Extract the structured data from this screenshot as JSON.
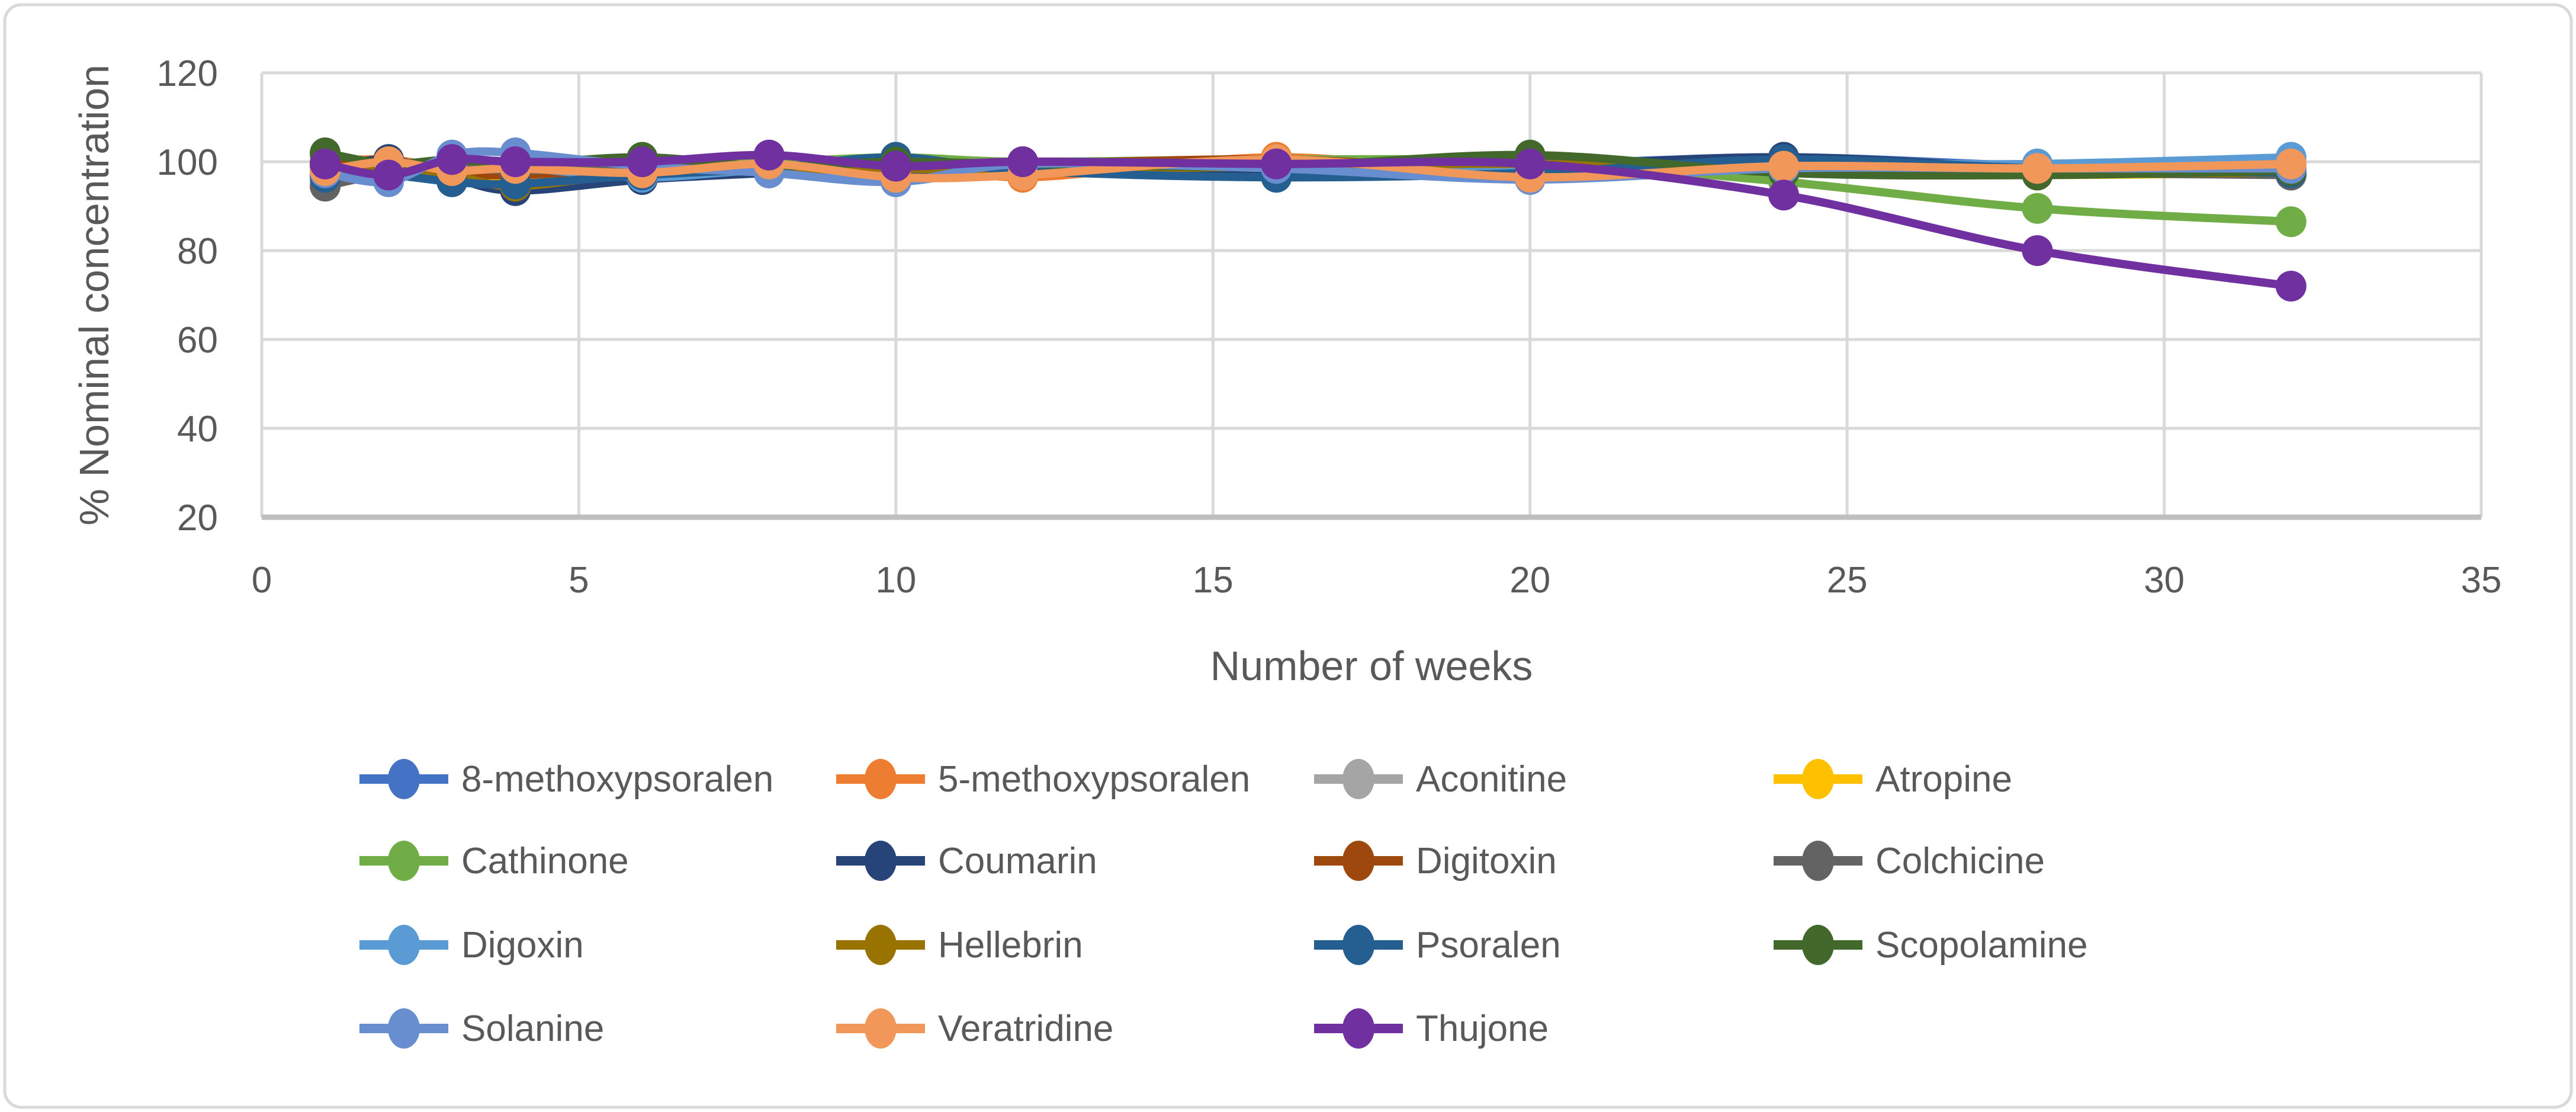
{
  "figure": {
    "background_color": "#FFFFFF",
    "border_color": "#D9D9D9",
    "text_color": "#595959",
    "grid_color": "#D9D9D9",
    "axis_line_color": "#BFBFBF"
  },
  "chart_data": {
    "type": "line",
    "title": "",
    "xlabel": "Number of weeks",
    "ylabel": "% Nominal concentration",
    "xlim": [
      0,
      35
    ],
    "ylim": [
      20,
      120
    ],
    "x_ticks": [
      0,
      5,
      10,
      15,
      20,
      25,
      30,
      35
    ],
    "y_ticks": [
      20,
      40,
      60,
      80,
      100,
      120
    ],
    "grid": true,
    "legend_position": "bottom",
    "marker": "circle",
    "line_smoothing": true,
    "x": [
      1,
      2,
      3,
      4,
      6,
      8,
      10,
      12,
      16,
      20,
      24,
      28,
      32
    ],
    "series": [
      {
        "name": "8-methoxypsoralen",
        "color": "#4472C4",
        "values": [
          99.5,
          97.5,
          100.5,
          99.5,
          100,
          99.5,
          100.5,
          99.5,
          100,
          99.5,
          101,
          99,
          97.5
        ]
      },
      {
        "name": "5-methoxypsoralen",
        "color": "#ED7D31",
        "values": [
          100,
          100.5,
          98.5,
          98,
          99.5,
          99,
          100.5,
          96.5,
          101,
          97,
          99,
          98.5,
          99.5
        ]
      },
      {
        "name": "Aconitine",
        "color": "#A5A5A5",
        "values": [
          95.5,
          98,
          99.5,
          98.5,
          99.5,
          100,
          98,
          100,
          99.5,
          100.5,
          98.5,
          98,
          97.5
        ]
      },
      {
        "name": "Atropine",
        "color": "#FFC000",
        "values": [
          99,
          98.5,
          97.5,
          96.5,
          98,
          98.5,
          97.5,
          98.5,
          98,
          97.5,
          97.5,
          97,
          97.5
        ]
      },
      {
        "name": "Cathinone",
        "color": "#70AD47",
        "values": [
          101.5,
          99,
          100,
          98.5,
          100.5,
          100,
          101,
          100,
          100.5,
          100,
          95.5,
          89.5,
          86.5
        ]
      },
      {
        "name": "Coumarin",
        "color": "#264478",
        "values": [
          98.5,
          100.5,
          96.5,
          93.5,
          96,
          97.5,
          99,
          98.5,
          97.5,
          99,
          101,
          98.5,
          97
        ]
      },
      {
        "name": "Digitoxin",
        "color": "#9E480E",
        "values": [
          99.5,
          99,
          97.5,
          97,
          98.5,
          99,
          99.5,
          99.5,
          100.5,
          98,
          98.5,
          98,
          98.5
        ]
      },
      {
        "name": "Colchicine",
        "color": "#636363",
        "values": [
          94.5,
          97.5,
          99,
          98,
          99,
          98.5,
          96.5,
          99,
          99,
          101,
          98,
          97.5,
          97
        ]
      },
      {
        "name": "Digoxin",
        "color": "#5B9BD5",
        "values": [
          97,
          96.5,
          101,
          99,
          96.5,
          98,
          95.5,
          99,
          99.5,
          98.5,
          99.5,
          99.5,
          101
        ]
      },
      {
        "name": "Hellebrin",
        "color": "#997300",
        "values": [
          99,
          98,
          97,
          94.5,
          97.5,
          98,
          98.5,
          98,
          99,
          99.5,
          98,
          97.5,
          97.5
        ]
      },
      {
        "name": "Psoralen",
        "color": "#255E91",
        "values": [
          96.5,
          97,
          95.5,
          95,
          97,
          98.5,
          101,
          98,
          96.5,
          97.5,
          100.5,
          98.5,
          97.5
        ]
      },
      {
        "name": "Scopolamine",
        "color": "#43682B",
        "values": [
          102,
          99.5,
          100.5,
          99.5,
          101,
          99,
          100,
          99.5,
          99,
          101.5,
          97.5,
          97,
          98
        ]
      },
      {
        "name": "Solanine",
        "color": "#698ED0",
        "values": [
          97.5,
          95.5,
          101.5,
          102,
          99,
          97.5,
          95.5,
          99.5,
          98.5,
          96,
          98.5,
          98.5,
          98.5
        ]
      },
      {
        "name": "Veratridine",
        "color": "#F1975A",
        "values": [
          98,
          100,
          98,
          98.5,
          97.5,
          99.5,
          96.5,
          97,
          100.5,
          96.5,
          99,
          98.5,
          99.5
        ]
      },
      {
        "name": "Thujone",
        "color": "#7030A0",
        "values": [
          99.5,
          97,
          100.5,
          100,
          100,
          101.5,
          99,
          100,
          99.5,
          99.5,
          92.5,
          80,
          72
        ]
      }
    ]
  }
}
